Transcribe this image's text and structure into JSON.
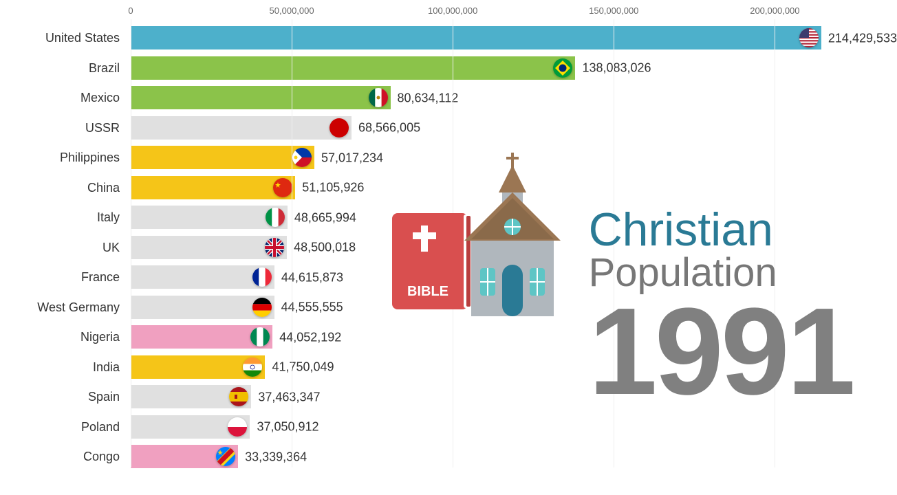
{
  "chart": {
    "type": "bar",
    "x_max": 220000000,
    "axis_ticks": [
      0,
      50000000,
      100000000,
      150000000,
      200000000
    ],
    "axis_labels": [
      "0",
      "50,000,000",
      "100,000,000",
      "150,000,000",
      "200,000,000"
    ],
    "grid_color": "#eeeeee",
    "background_color": "#ffffff",
    "label_fontsize": 18,
    "value_fontsize": 18,
    "axis_fontsize": 13,
    "bars": [
      {
        "label": "United States",
        "value": 214429533,
        "value_str": "214,429,533",
        "color": "#4db0cb",
        "flag": "us"
      },
      {
        "label": "Brazil",
        "value": 138083026,
        "value_str": "138,083,026",
        "color": "#8bc34a",
        "flag": "br"
      },
      {
        "label": "Mexico",
        "value": 80634112,
        "value_str": "80,634,112",
        "color": "#8bc34a",
        "flag": "mx"
      },
      {
        "label": "USSR",
        "value": 68566005,
        "value_str": "68,566,005",
        "color": "#e0e0e0",
        "flag": "ussr"
      },
      {
        "label": "Philippines",
        "value": 57017234,
        "value_str": "57,017,234",
        "color": "#f5c518",
        "flag": "ph"
      },
      {
        "label": "China",
        "value": 51105926,
        "value_str": "51,105,926",
        "color": "#f5c518",
        "flag": "cn"
      },
      {
        "label": "Italy",
        "value": 48665994,
        "value_str": "48,665,994",
        "color": "#e0e0e0",
        "flag": "it"
      },
      {
        "label": "UK",
        "value": 48500018,
        "value_str": "48,500,018",
        "color": "#e0e0e0",
        "flag": "uk"
      },
      {
        "label": "France",
        "value": 44615873,
        "value_str": "44,615,873",
        "color": "#e0e0e0",
        "flag": "fr"
      },
      {
        "label": "West Germany",
        "value": 44555555,
        "value_str": "44,555,555",
        "color": "#e0e0e0",
        "flag": "de"
      },
      {
        "label": "Nigeria",
        "value": 44052192,
        "value_str": "44,052,192",
        "color": "#f0a0c0",
        "flag": "ng"
      },
      {
        "label": "India",
        "value": 41750049,
        "value_str": "41,750,049",
        "color": "#f5c518",
        "flag": "in"
      },
      {
        "label": "Spain",
        "value": 37463347,
        "value_str": "37,463,347",
        "color": "#e0e0e0",
        "flag": "es"
      },
      {
        "label": "Poland",
        "value": 37050912,
        "value_str": "37,050,912",
        "color": "#e0e0e0",
        "flag": "pl"
      },
      {
        "label": "Congo",
        "value": 33339364,
        "value_str": "33,339,364",
        "color": "#f0a0c0",
        "flag": "cd"
      }
    ]
  },
  "title": {
    "line1": "Christian",
    "line1_color": "#2a7a95",
    "line2": "Population",
    "line2_color": "#777777",
    "year": "1991",
    "year_color": "#808080"
  },
  "bible": {
    "label": "BIBLE",
    "bg_color": "#d94f4f",
    "cross_color": "#ffffff"
  }
}
